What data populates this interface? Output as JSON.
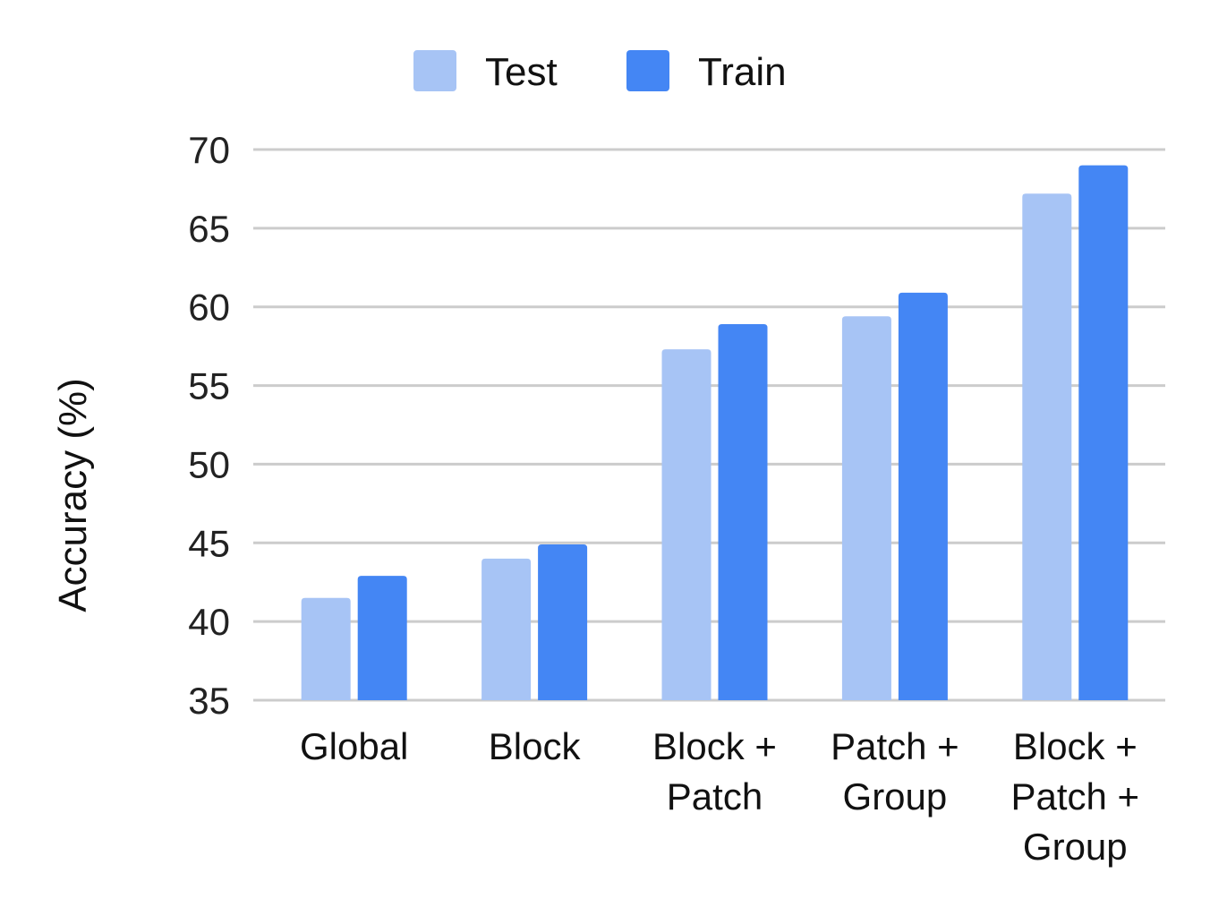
{
  "chart_data": {
    "type": "bar",
    "title": "",
    "xlabel": "",
    "ylabel": "Accuracy (%)",
    "ylim": [
      35,
      70
    ],
    "yticks": [
      35,
      40,
      45,
      50,
      55,
      60,
      65,
      70
    ],
    "grid": true,
    "legend_position": "top-center",
    "categories": [
      [
        "Global"
      ],
      [
        "Block"
      ],
      [
        "Block +",
        "Patch"
      ],
      [
        "Patch +",
        "Group"
      ],
      [
        "Block +",
        "Patch +",
        "Group"
      ]
    ],
    "series": [
      {
        "name": "Test",
        "color": "#a7c4f5",
        "values": [
          41.5,
          44.0,
          57.3,
          59.4,
          67.2
        ]
      },
      {
        "name": "Train",
        "color": "#4486f4",
        "values": [
          42.9,
          44.9,
          58.9,
          60.9,
          69.0
        ]
      }
    ]
  },
  "colors": {
    "grid": "#cccccc",
    "text": "#111111"
  }
}
